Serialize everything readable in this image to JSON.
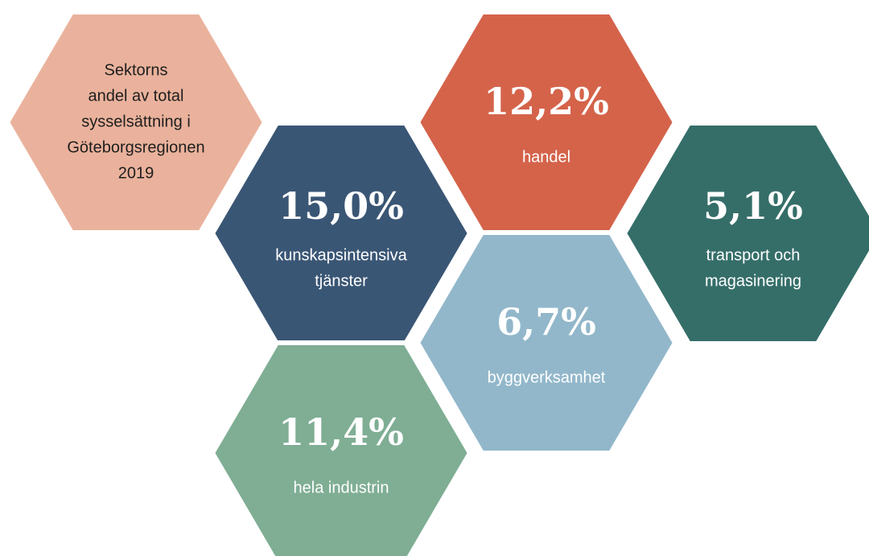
{
  "intro": {
    "lines": [
      "Sektorns",
      "andel av total",
      "sysselsättning i",
      "Göteborgsregionen",
      "2019"
    ]
  },
  "nodes": [
    {
      "value": "12,2%",
      "label": [
        "handel"
      ],
      "color": "#d4634a"
    },
    {
      "value": "15,0%",
      "label": [
        "kunskapsintensiva",
        "tjänster"
      ],
      "color": "#3a5675"
    },
    {
      "value": "5,1%",
      "label": [
        "transport och",
        "magasinering"
      ],
      "color": "#356e69"
    },
    {
      "value": "6,7%",
      "label": [
        "byggverksamhet"
      ],
      "color": "#92b7ca"
    },
    {
      "value": "11,4%",
      "label": [
        "hela industrin"
      ],
      "color": "#7fae94"
    }
  ],
  "intro_color": "#eab29c"
}
